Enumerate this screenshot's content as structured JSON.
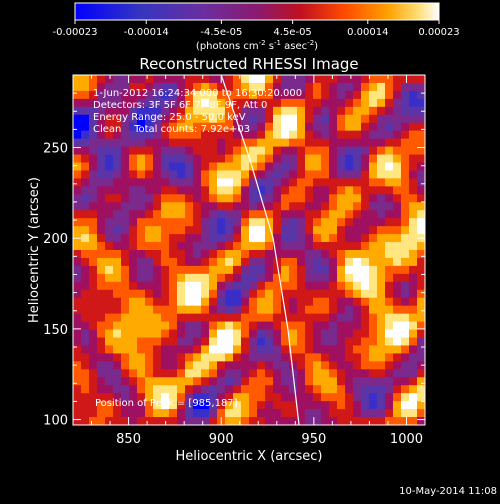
{
  "colorbar": {
    "tick_labels": [
      "-0.00023",
      "-0.00014",
      "-4.5e-05",
      "4.5e-05",
      "0.00014",
      "0.00023"
    ],
    "tick_values": [
      -0.00023,
      -0.00014,
      -4.5e-05,
      4.5e-05,
      0.00014,
      0.00023
    ],
    "range": [
      -0.00023,
      0.00023
    ],
    "units_prefix": "(photons cm",
    "units_exp1": "-2",
    "units_mid": " s",
    "units_exp2": "-1",
    "units_mid2": " asec",
    "units_exp3": "-2",
    "units_suffix": ")"
  },
  "chart_data": {
    "type": "heatmap",
    "title": "Reconstructed RHESSI Image",
    "xlabel": "Heliocentric X (arcsec)",
    "ylabel": "Heliocentric Y (arcsec)",
    "xlim": [
      820,
      1010
    ],
    "ylim": [
      97,
      290
    ],
    "x_ticks": [
      850,
      900,
      950,
      1000
    ],
    "x_tick_labels": [
      "850",
      "900",
      "950",
      "1000"
    ],
    "y_ticks": [
      100,
      150,
      200,
      250
    ],
    "y_tick_labels": [
      "100",
      "150",
      "200",
      "250"
    ],
    "limb_curve": [
      [
        900,
        290
      ],
      [
        915,
        245
      ],
      [
        928,
        200
      ],
      [
        936,
        150
      ],
      [
        942,
        97
      ]
    ],
    "annotations": {
      "time_range": "1-Jun-2012 16:24:34.000 to 16:30:20.000",
      "detectors": "Detectors: 3F 5F 6F 7F 8F 9F, Att 0",
      "energy_range": "Energy Range: 25.0 - 50.0 keV",
      "clean": "Clean    Total counts: 7.92e+03",
      "peak": "Position of Peak = [985,187]"
    },
    "peak_position": [
      985,
      187
    ]
  },
  "footer": {
    "timestamp": "10-May-2014 11:08"
  },
  "colors": {
    "background": "#000000",
    "limb": "#ffffff",
    "colormap": [
      "#0000ff",
      "#3a2ec8",
      "#5a35a8",
      "#7a2a8c",
      "#a01060",
      "#d01818",
      "#ff5a00",
      "#ffaa00",
      "#ffe680",
      "#ffffff"
    ]
  }
}
